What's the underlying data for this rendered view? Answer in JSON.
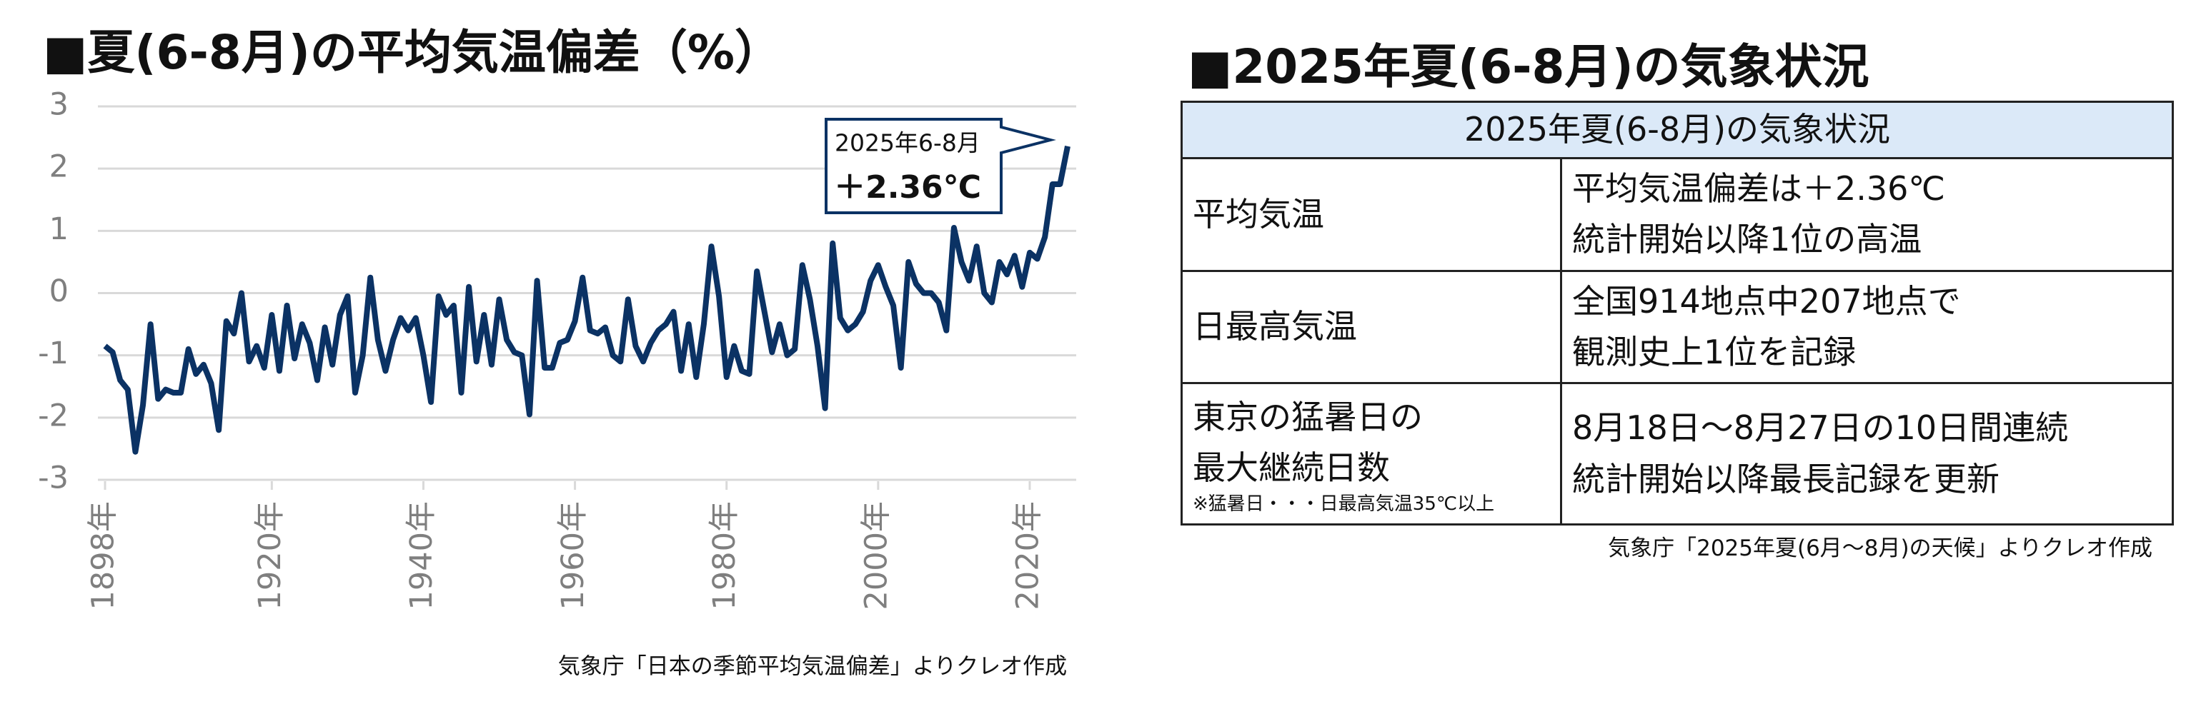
{
  "chart_data": {
    "type": "line",
    "title": "■夏(6-8月)の平均気温偏差（%）",
    "source": "気象庁「日本の季節平均気温偏差」よりクレオ作成",
    "annotation": {
      "line1": "2025年6-8月",
      "line2": "＋2.36℃"
    },
    "x": [
      1898,
      1899,
      1900,
      1901,
      1902,
      1903,
      1904,
      1905,
      1906,
      1907,
      1908,
      1909,
      1910,
      1911,
      1912,
      1913,
      1914,
      1915,
      1916,
      1917,
      1918,
      1919,
      1920,
      1921,
      1922,
      1923,
      1924,
      1925,
      1926,
      1927,
      1928,
      1929,
      1930,
      1931,
      1932,
      1933,
      1934,
      1935,
      1936,
      1937,
      1938,
      1939,
      1940,
      1941,
      1942,
      1943,
      1944,
      1945,
      1946,
      1947,
      1948,
      1949,
      1950,
      1951,
      1952,
      1953,
      1954,
      1955,
      1956,
      1957,
      1958,
      1959,
      1960,
      1961,
      1962,
      1963,
      1964,
      1965,
      1966,
      1967,
      1968,
      1969,
      1970,
      1971,
      1972,
      1973,
      1974,
      1975,
      1976,
      1977,
      1978,
      1979,
      1980,
      1981,
      1982,
      1983,
      1984,
      1985,
      1986,
      1987,
      1988,
      1989,
      1990,
      1991,
      1992,
      1993,
      1994,
      1995,
      1996,
      1997,
      1998,
      1999,
      2000,
      2001,
      2002,
      2003,
      2004,
      2005,
      2006,
      2007,
      2008,
      2009,
      2010,
      2011,
      2012,
      2013,
      2014,
      2015,
      2016,
      2017,
      2018,
      2019,
      2020,
      2021,
      2022,
      2023,
      2024,
      2025
    ],
    "series": [
      {
        "color": "#0b3264",
        "values": [
          -0.85,
          -0.95,
          -1.4,
          -1.55,
          -2.55,
          -1.8,
          -0.5,
          -1.7,
          -1.55,
          -1.6,
          -1.6,
          -0.9,
          -1.3,
          -1.15,
          -1.45,
          -2.2,
          -0.45,
          -0.65,
          0.0,
          -1.1,
          -0.85,
          -1.2,
          -0.35,
          -1.25,
          -0.2,
          -1.05,
          -0.5,
          -0.8,
          -1.4,
          -0.55,
          -1.15,
          -0.35,
          -0.05,
          -1.6,
          -1.0,
          0.25,
          -0.75,
          -1.25,
          -0.75,
          -0.4,
          -0.6,
          -0.4,
          -1.0,
          -1.75,
          -0.05,
          -0.35,
          -0.2,
          -1.6,
          0.1,
          -1.1,
          -0.35,
          -1.15,
          -0.1,
          -0.75,
          -0.95,
          -1.0,
          -1.95,
          0.2,
          -1.2,
          -1.2,
          -0.8,
          -0.75,
          -0.45,
          0.25,
          -0.6,
          -0.65,
          -0.55,
          -1.0,
          -1.1,
          -0.1,
          -0.85,
          -1.1,
          -0.8,
          -0.6,
          -0.5,
          -0.3,
          -1.25,
          -0.5,
          -1.35,
          -0.5,
          0.75,
          -0.05,
          -1.35,
          -0.85,
          -1.25,
          -1.3,
          0.35,
          -0.3,
          -0.95,
          -0.5,
          -1.0,
          -0.9,
          0.45,
          -0.1,
          -0.85,
          -1.85,
          0.8,
          -0.4,
          -0.6,
          -0.5,
          -0.3,
          0.2,
          0.45,
          0.1,
          -0.2,
          -1.2,
          0.5,
          0.15,
          0.0,
          0.0,
          -0.15,
          -0.6,
          1.05,
          0.5,
          0.2,
          0.75,
          0.0,
          -0.15,
          0.5,
          0.3,
          0.6,
          0.1,
          0.65,
          0.55,
          0.9,
          1.75,
          1.75,
          2.36
        ]
      }
    ],
    "xlim": [
      1898,
      2025
    ],
    "xticks": [
      {
        "value": 1898,
        "label": "1898年"
      },
      {
        "value": 1920,
        "label": "1920年"
      },
      {
        "value": 1940,
        "label": "1940年"
      },
      {
        "value": 1960,
        "label": "1960年"
      },
      {
        "value": 1980,
        "label": "1980年"
      },
      {
        "value": 2000,
        "label": "2000年"
      },
      {
        "value": 2020,
        "label": "2020年"
      }
    ],
    "ylim": [
      -3,
      3
    ],
    "yticks": [
      -3,
      -2,
      -1,
      0,
      1,
      2,
      3
    ],
    "grid": true
  },
  "panel": {
    "title": "■2025年夏(6-8月)の気象状況",
    "table": {
      "header": "2025年夏(6-8月)の気象状況",
      "rows": [
        {
          "label": [
            "平均気温"
          ],
          "text": [
            "平均気温偏差は＋2.36℃",
            "統計開始以降1位の高温"
          ]
        },
        {
          "label": [
            "日最高気温"
          ],
          "text": [
            "全国914地点中207地点で",
            "観測史上1位を記録"
          ]
        },
        {
          "label": [
            "東京の猛暑日の",
            "最大継続日数"
          ],
          "note": "※猛暑日・・・日最高気温35℃以上",
          "text": [
            "8月18日～8月27日の10日間連続",
            "統計開始以降最長記録を更新"
          ]
        }
      ]
    },
    "source": "気象庁「2025年夏(6月～8月)の天候」よりクレオ作成"
  }
}
